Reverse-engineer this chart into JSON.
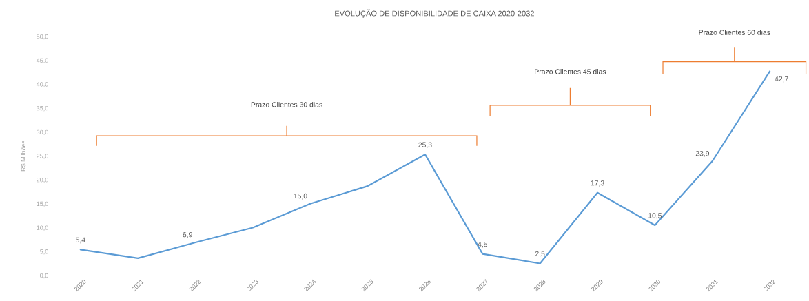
{
  "chart_data": {
    "type": "line",
    "title": "EVOLUÇÃO DE DISPONIBILIDADE DE CAIXA 2020-2032",
    "ylabel": "R$ Milhões",
    "categories": [
      "2020",
      "2021",
      "2022",
      "2023",
      "2024",
      "2025",
      "2026",
      "2027",
      "2028",
      "2029",
      "2030",
      "2031",
      "2032"
    ],
    "series": [
      {
        "color": "#5b9bd5",
        "values": [
          5.4,
          3.6,
          6.9,
          10.0,
          15.0,
          18.7,
          25.3,
          4.5,
          2.5,
          17.3,
          10.5,
          23.9,
          42.7
        ],
        "value_labels": [
          "5,4",
          null,
          "6,9",
          null,
          "15,0",
          null,
          "25,3",
          "4,5",
          "2,5",
          "17,3",
          "10,5",
          "23,9",
          "42,7"
        ]
      }
    ],
    "ylim": [
      0,
      50
    ],
    "yticks": [
      {
        "value": 0,
        "label": "0,0"
      },
      {
        "value": 5,
        "label": "5,0"
      },
      {
        "value": 10,
        "label": "10,0"
      },
      {
        "value": 15,
        "label": "15,0"
      },
      {
        "value": 20,
        "label": "20,0"
      },
      {
        "value": 25,
        "label": "25,0"
      },
      {
        "value": 30,
        "label": "30,0"
      },
      {
        "value": 35,
        "label": "35,0"
      },
      {
        "value": 40,
        "label": "40,0"
      },
      {
        "value": 45,
        "label": "45,0"
      },
      {
        "value": 50,
        "label": "50,0"
      }
    ],
    "annotations": [
      "Prazo Clientes 30 dias",
      "Prazo Clientes 45 dias",
      "Prazo Clientes 60 dias"
    ]
  }
}
